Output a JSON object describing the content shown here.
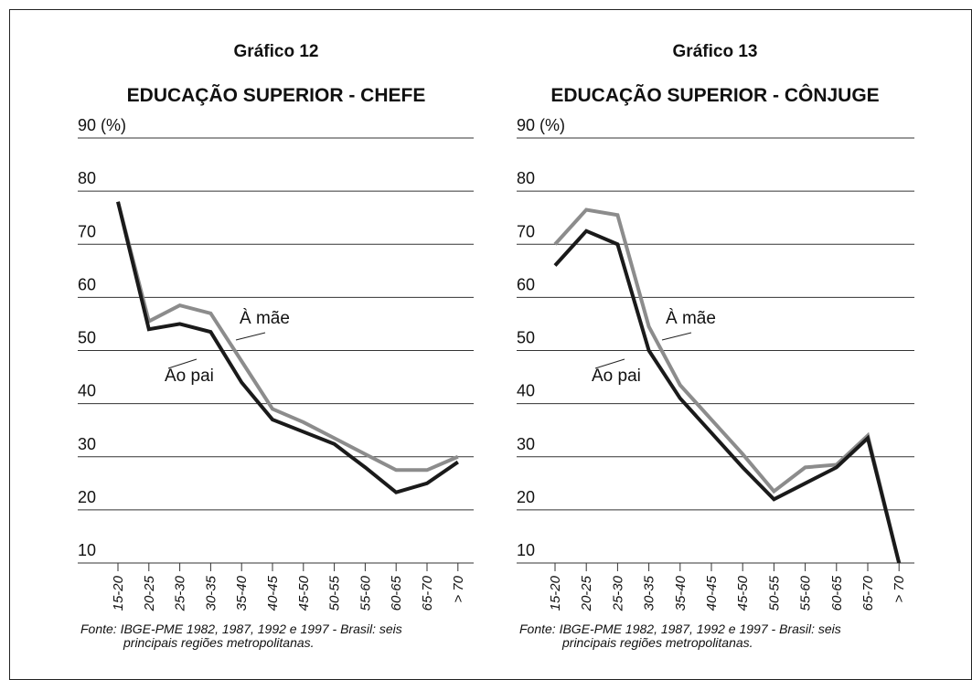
{
  "chart_data": [
    {
      "type": "line",
      "title": "Gráfico 12",
      "subtitle": "EDUCAÇÃO SUPERIOR - CHEFE",
      "categories": [
        "15-20",
        "20-25",
        "25-30",
        "30-35",
        "35-40",
        "40-45",
        "45-50",
        "50-55",
        "55-60",
        "60-65",
        "65-70",
        "> 70"
      ],
      "series": [
        {
          "name": "À mãe",
          "color": "#8c8c8c",
          "values": [
            78,
            55.5,
            58.5,
            57,
            48,
            39,
            36.5,
            33.5,
            30.5,
            27.5,
            27.5,
            30
          ]
        },
        {
          "name": "Ao pai",
          "color": "#1a1a1a",
          "values": [
            78,
            54,
            55,
            53.5,
            44,
            37,
            34.7,
            32.4,
            28,
            23.3,
            25,
            29
          ]
        }
      ],
      "ylim": [
        10,
        90
      ],
      "yticks": [
        10,
        20,
        30,
        40,
        50,
        60,
        70,
        80,
        {
          "value": 90,
          "label": "90 (%)"
        }
      ],
      "grid": true,
      "source": [
        "Fonte: IBGE-PME 1982, 1987, 1992 e 1997 - Brasil: seis",
        "principais regiões metropolitanas."
      ]
    },
    {
      "type": "line",
      "title": "Gráfico 13",
      "subtitle": "EDUCAÇÃO SUPERIOR - CÔNJUGE",
      "categories": [
        "15-20",
        "20-25",
        "25-30",
        "30-35",
        "35-40",
        "40-45",
        "45-50",
        "50-55",
        "55-60",
        "60-65",
        "65-70",
        "> 70"
      ],
      "series": [
        {
          "name": "À mãe",
          "color": "#8c8c8c",
          "values": [
            70,
            76.5,
            75.5,
            54.5,
            43.5,
            37,
            30.5,
            23.5,
            28,
            28.5,
            34,
            10
          ]
        },
        {
          "name": "Ao pai",
          "color": "#1a1a1a",
          "values": [
            66,
            72.5,
            70,
            50,
            41,
            34.5,
            28,
            22,
            25,
            28,
            33.5,
            10
          ]
        }
      ],
      "ylim": [
        10,
        90
      ],
      "yticks": [
        10,
        20,
        30,
        40,
        50,
        60,
        70,
        80,
        {
          "value": 90,
          "label": "90 (%)"
        }
      ],
      "grid": true,
      "source": [
        "Fonte: IBGE-PME 1982, 1987, 1992 e 1997 - Brasil: seis",
        "principais regiões metropolitanas."
      ]
    }
  ]
}
